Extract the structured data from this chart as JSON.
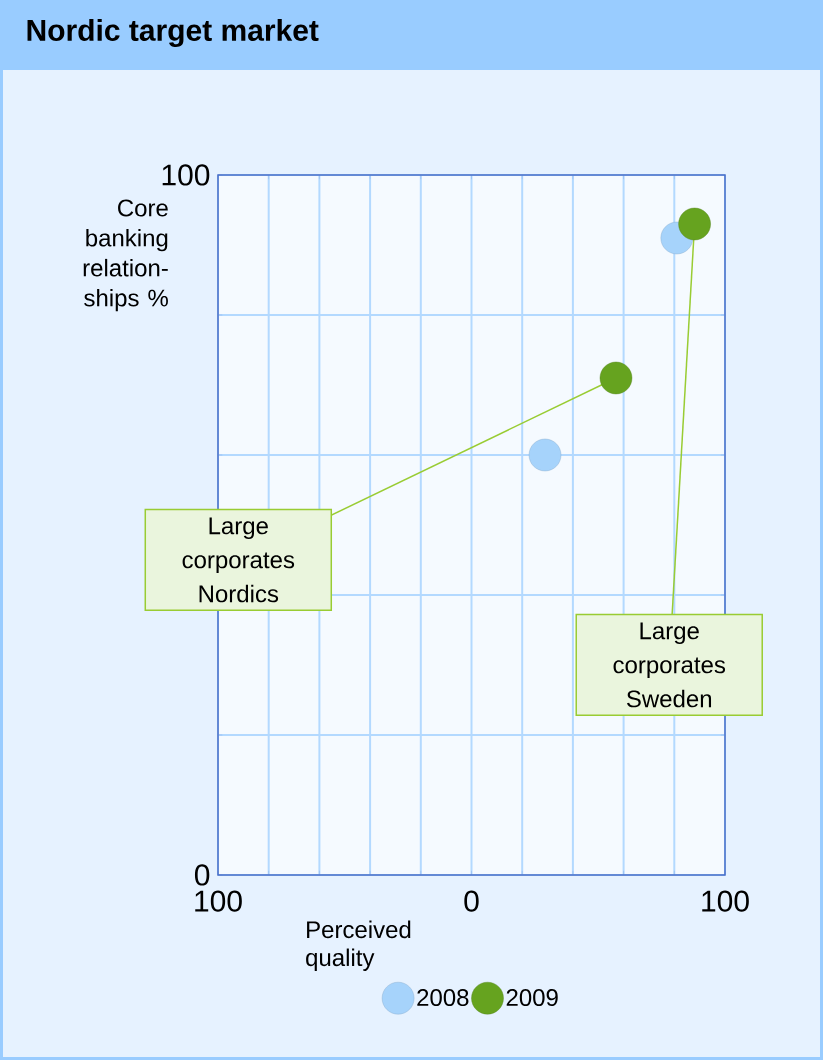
{
  "chart_data": {
    "type": "scatter",
    "title": "Nordic target market",
    "xlabel": "Perceived quality",
    "ylabel": "Core banking relation- ships %",
    "xlim": [
      -100,
      100
    ],
    "ylim": [
      0,
      100
    ],
    "xticks": [
      {
        "value": -100,
        "label": "100"
      },
      {
        "value": -80,
        "label": null
      },
      {
        "value": -60,
        "label": null
      },
      {
        "value": -40,
        "label": null
      },
      {
        "value": -20,
        "label": null
      },
      0,
      {
        "value": 20,
        "label": null
      },
      {
        "value": 40,
        "label": null
      },
      {
        "value": 60,
        "label": null
      },
      {
        "value": 80,
        "label": null
      },
      100
    ],
    "yticks": [
      0,
      {
        "value": 20,
        "label": null
      },
      {
        "value": 40,
        "label": null
      },
      {
        "value": 60,
        "label": null
      },
      {
        "value": 80,
        "label": null
      },
      100
    ],
    "grid": true,
    "legend": "bottom",
    "marker": "circle",
    "series": [
      {
        "name": "2008",
        "color": "#a6d3fb",
        "x": [
          29,
          81
        ],
        "values": [
          60,
          91
        ]
      },
      {
        "name": "2009",
        "color": "#66a31f",
        "x": [
          57,
          88
        ],
        "values": [
          71,
          93
        ]
      }
    ],
    "annotations": [
      {
        "text": "Large corporates Nordics",
        "x": 57,
        "y": 71
      },
      {
        "text": "Large corporates Sweden",
        "x": 88,
        "y": 93
      }
    ]
  }
}
